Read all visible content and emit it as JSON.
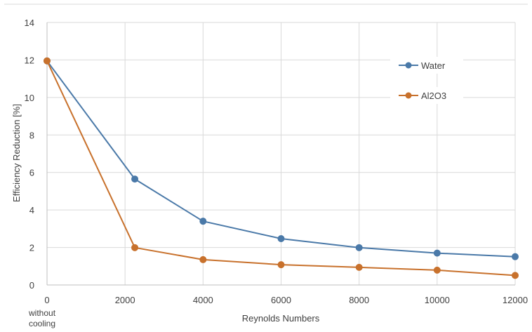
{
  "chart_data": {
    "type": "line",
    "title": "",
    "xlabel": "Reynolds Numbers",
    "ylabel": "Efficiency Reduction [%]",
    "xlim": [
      0,
      12000
    ],
    "ylim": [
      0,
      14
    ],
    "x_ticks": [
      0,
      2000,
      4000,
      6000,
      8000,
      10000,
      12000
    ],
    "y_ticks": [
      0,
      2,
      4,
      6,
      8,
      10,
      12,
      14
    ],
    "x_tick_note": "without cooling",
    "grid": true,
    "legend_position": "top-right",
    "series": [
      {
        "name": "Water",
        "color": "#4a79a8",
        "x": [
          0,
          2250,
          4000,
          6000,
          8000,
          10000,
          12000
        ],
        "values": [
          11.95,
          5.65,
          3.4,
          2.47,
          1.99,
          1.7,
          1.51
        ]
      },
      {
        "name": "Al2O3",
        "color": "#c8712c",
        "x": [
          0,
          2250,
          4000,
          6000,
          8000,
          10000,
          12000
        ],
        "values": [
          11.95,
          1.99,
          1.35,
          1.08,
          0.94,
          0.79,
          0.51
        ]
      }
    ]
  }
}
